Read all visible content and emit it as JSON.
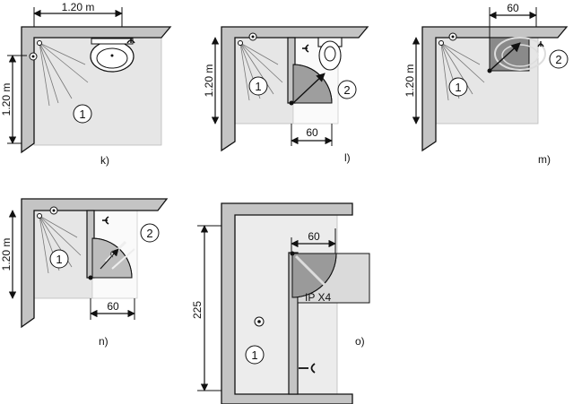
{
  "diagrams": [
    {
      "id": "k",
      "label": "k)",
      "dims": [
        "1.20 m",
        "1.20 m"
      ],
      "zones": [
        "1"
      ]
    },
    {
      "id": "l",
      "label": "l)",
      "dims": [
        "1.20 m",
        "60"
      ],
      "zones": [
        "1",
        "2"
      ]
    },
    {
      "id": "m",
      "label": "m)",
      "dims": [
        "60",
        "1.20 m"
      ],
      "zones": [
        "1",
        "2"
      ]
    },
    {
      "id": "n",
      "label": "n)",
      "dims": [
        "1.20 m",
        "60"
      ],
      "zones": [
        "1",
        "2"
      ]
    },
    {
      "id": "o",
      "label": "o)",
      "dims": [
        "225",
        "60"
      ],
      "zones": [
        "1"
      ],
      "note": "IP X4"
    }
  ],
  "colors": {
    "wall_fill": "#c0c0c0",
    "zone1_fill": "#e6e6e6",
    "zone2_fill": "#e0e0e0",
    "door_fill": "#9a9a9a",
    "line": "#111111"
  }
}
